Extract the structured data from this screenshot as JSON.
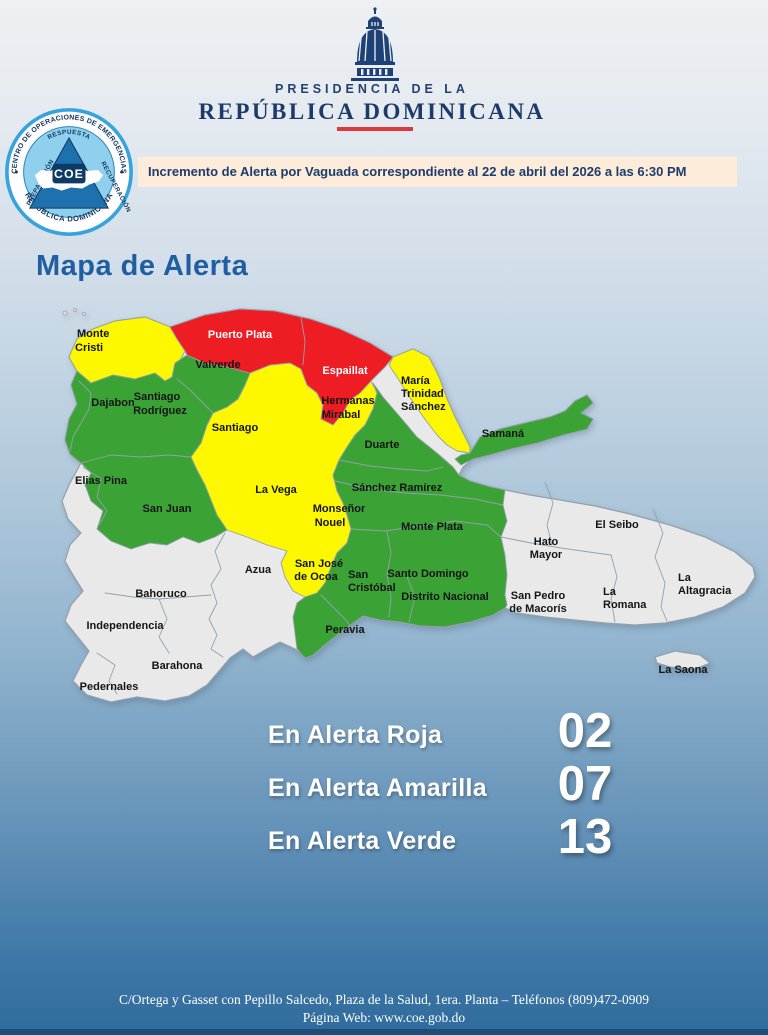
{
  "header": {
    "org_line1": "PRESIDENCIA DE LA",
    "org_line2": "REPÚBLICA DOMINICANA"
  },
  "coe_logo": {
    "ring_top": "CENTRO DE OPERACIONES DE EMERGENCIAS",
    "ring_bottom": "REPÚBLICA DOMINICANA",
    "inner_top": "RESPUESTA",
    "inner_left": "PREPARACIÓN",
    "inner_right": "RECUPERACIÓN",
    "inner_bottom": "VOCERO OFICIAL",
    "center": "COE"
  },
  "banner": {
    "text": "Incremento de Alerta por Vaguada correspondiente al 22 de abril del 2026 a las 6:30 PM"
  },
  "map": {
    "title": "Mapa de Alerta",
    "alert_colors": {
      "red": "#ee1c23",
      "yellow": "#fdf800",
      "green": "#3ba336",
      "none": "#e9e9e9"
    },
    "provinces": [
      {
        "id": "monte-cristi",
        "name": "Monte Cristi",
        "alert": "yellow",
        "anchor": "start",
        "lines": [
          [
            "Monte",
            22,
            32
          ],
          [
            "Cristi",
            20,
            46
          ]
        ]
      },
      {
        "id": "puerto-plata",
        "name": "Puerto Plata",
        "alert": "red",
        "anchor": "middle",
        "lines": [
          [
            "Puerto Plata",
            185,
            33
          ]
        ]
      },
      {
        "id": "valverde",
        "name": "Valverde",
        "alert": "green",
        "anchor": "middle",
        "lines": [
          [
            "Valverde",
            163,
            63
          ]
        ]
      },
      {
        "id": "espaillat",
        "name": "Espaillat",
        "alert": "red",
        "anchor": "middle",
        "lines": [
          [
            "Espaillat",
            290,
            69
          ]
        ]
      },
      {
        "id": "santiago-rodriguez",
        "name": "Santiago Rodríguez",
        "alert": "green",
        "anchor": "middle",
        "lines": [
          [
            "Santiago",
            102,
            95
          ],
          [
            "Rodríguez",
            105,
            109
          ]
        ]
      },
      {
        "id": "dajabon",
        "name": "Dajabon",
        "alert": "green",
        "anchor": "middle",
        "lines": [
          [
            "Dajabon",
            58,
            101
          ]
        ]
      },
      {
        "id": "santiago",
        "name": "Santiago",
        "alert": "yellow",
        "anchor": "middle",
        "lines": [
          [
            "Santiago",
            180,
            126
          ]
        ]
      },
      {
        "id": "hermanas-mirabal",
        "name": "Hermanas Mirabal",
        "alert": "yellow",
        "anchor": "middle",
        "lines": [
          [
            "Hermanas",
            293,
            99
          ],
          [
            "Mirabal",
            286,
            113
          ]
        ]
      },
      {
        "id": "maria-trinidad-sanchez",
        "name": "María Trinidad Sánchez",
        "alert": "yellow",
        "anchor": "start",
        "lines": [
          [
            "María",
            346,
            79
          ],
          [
            "Trinidad",
            346,
            92
          ],
          [
            "Sánchez",
            346,
            105
          ]
        ]
      },
      {
        "id": "duarte",
        "name": "Duarte",
        "alert": "green",
        "anchor": "middle",
        "lines": [
          [
            "Duarte",
            327,
            143
          ]
        ]
      },
      {
        "id": "samana",
        "name": "Samaná",
        "alert": "green",
        "anchor": "middle",
        "lines": [
          [
            "Samaná",
            448,
            132
          ]
        ]
      },
      {
        "id": "sanchez-ramirez",
        "name": "Sánchez Ramírez",
        "alert": "green",
        "anchor": "middle",
        "lines": [
          [
            "Sánchez Ramírez",
            342,
            186
          ]
        ]
      },
      {
        "id": "la-vega",
        "name": "La Vega",
        "alert": "yellow",
        "anchor": "middle",
        "lines": [
          [
            "La Vega",
            221,
            188
          ]
        ]
      },
      {
        "id": "monsenor-nouel",
        "name": "Monseñor Nouel",
        "alert": "yellow",
        "anchor": "middle",
        "lines": [
          [
            "Monseñor",
            284,
            207
          ],
          [
            "Nouel",
            275,
            221
          ]
        ]
      },
      {
        "id": "elias-pina",
        "name": "Elias Pina",
        "alert": "green",
        "anchor": "middle",
        "lines": [
          [
            "Elias Pina",
            46,
            179
          ]
        ]
      },
      {
        "id": "san-juan",
        "name": "San Juan",
        "alert": "green",
        "anchor": "middle",
        "lines": [
          [
            "San Juan",
            112,
            207
          ]
        ]
      },
      {
        "id": "azua",
        "name": "Azua",
        "alert": "none",
        "anchor": "middle",
        "lines": [
          [
            "Azua",
            203,
            268
          ]
        ]
      },
      {
        "id": "san-jose-de-ocoa",
        "name": "San José de Ocoa",
        "alert": "yellow",
        "anchor": "middle",
        "lines": [
          [
            "San José",
            264,
            262
          ],
          [
            "de Ocoa",
            261,
            275
          ]
        ]
      },
      {
        "id": "san-cristobal",
        "name": "San Cristóbal",
        "alert": "green",
        "anchor": "start",
        "lines": [
          [
            "San",
            293,
            273
          ],
          [
            "Cristóbal",
            293,
            286
          ]
        ]
      },
      {
        "id": "monte-plata",
        "name": "Monte Plata",
        "alert": "green",
        "anchor": "middle",
        "lines": [
          [
            "Monte Plata",
            377,
            225
          ]
        ]
      },
      {
        "id": "hato-mayor",
        "name": "Hato Mayor",
        "alert": "none",
        "anchor": "middle",
        "lines": [
          [
            "Hato",
            491,
            240
          ],
          [
            "Mayor",
            491,
            253
          ]
        ]
      },
      {
        "id": "el-seibo",
        "name": "El Seibo",
        "alert": "none",
        "anchor": "middle",
        "lines": [
          [
            "El Seibo",
            562,
            223
          ]
        ]
      },
      {
        "id": "bahoruco",
        "name": "Bahoruco",
        "alert": "none",
        "anchor": "middle",
        "lines": [
          [
            "Bahoruco",
            106,
            292
          ]
        ]
      },
      {
        "id": "independencia",
        "name": "Independencia",
        "alert": "none",
        "anchor": "middle",
        "lines": [
          [
            "Independencia",
            70,
            324
          ]
        ]
      },
      {
        "id": "barahona",
        "name": "Barahona",
        "alert": "none",
        "anchor": "middle",
        "lines": [
          [
            "Barahona",
            122,
            364
          ]
        ]
      },
      {
        "id": "pedernales",
        "name": "Pedernales",
        "alert": "none",
        "anchor": "middle",
        "lines": [
          [
            "Pedernales",
            54,
            385
          ]
        ]
      },
      {
        "id": "peravia",
        "name": "Peravia",
        "alert": "green",
        "anchor": "middle",
        "lines": [
          [
            "Peravia",
            290,
            328
          ]
        ]
      },
      {
        "id": "santo-domingo",
        "name": "Santo Domingo",
        "alert": "green",
        "anchor": "middle",
        "lines": [
          [
            "Santo Domingo",
            373,
            272
          ]
        ]
      },
      {
        "id": "distrito-nacional",
        "name": "Distrito Nacional",
        "alert": "green",
        "anchor": "middle",
        "lines": [
          [
            "Distrito Nacional",
            390,
            295
          ]
        ]
      },
      {
        "id": "san-pedro-de-macoris",
        "name": "San Pedro de Macorís",
        "alert": "none",
        "anchor": "middle",
        "lines": [
          [
            "San Pedro",
            483,
            294
          ],
          [
            "de Macorís",
            483,
            307
          ]
        ]
      },
      {
        "id": "la-romana",
        "name": "La Romana",
        "alert": "none",
        "anchor": "start",
        "lines": [
          [
            "La",
            548,
            290
          ],
          [
            "Romana",
            548,
            303
          ]
        ]
      },
      {
        "id": "la-altagracia",
        "name": "La Altagracia",
        "alert": "none",
        "anchor": "start",
        "lines": [
          [
            "La",
            623,
            276
          ],
          [
            "Altagracia",
            623,
            289
          ]
        ]
      },
      {
        "id": "la-saona",
        "name": "La Saona",
        "alert": "none",
        "anchor": "middle",
        "lines": [
          [
            "La Saona",
            628,
            368
          ]
        ]
      }
    ]
  },
  "alerts": {
    "rows": [
      {
        "key": "red",
        "label": "En Alerta Roja",
        "value": "02"
      },
      {
        "key": "yellow",
        "label": "En Alerta Amarilla",
        "value": "07"
      },
      {
        "key": "green",
        "label": "En Alerta Verde",
        "value": "13"
      }
    ]
  },
  "footer": {
    "line1": "C/Ortega y Gasset con Pepillo Salcedo, Plaza de la Salud, 1era. Planta – Teléfonos (809)472-0909",
    "line2": "Página Web: www.coe.gob.do"
  }
}
